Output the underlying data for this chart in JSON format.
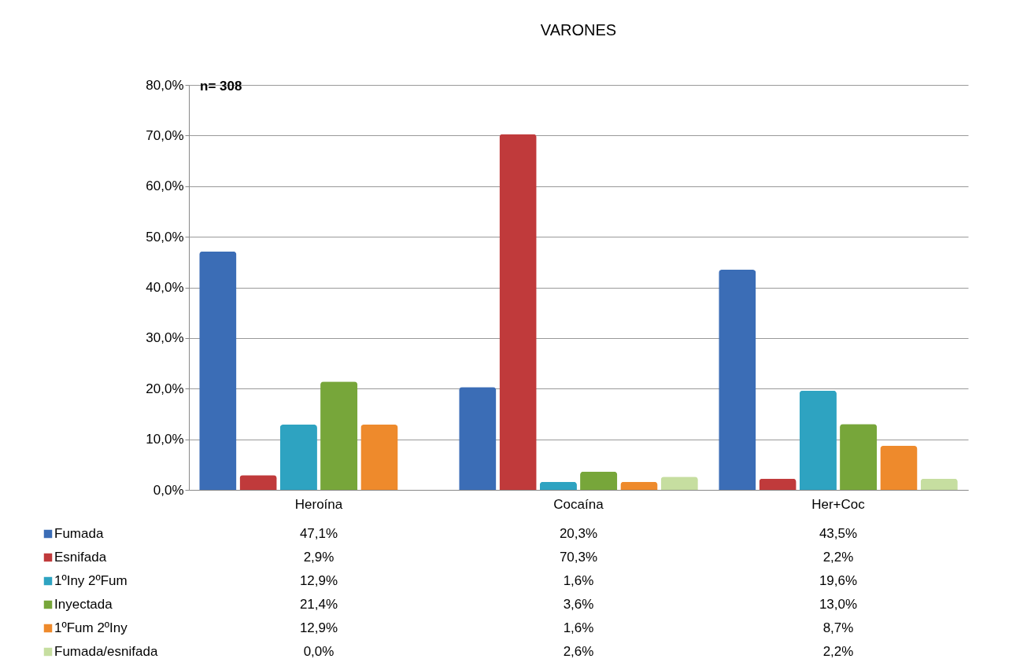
{
  "chart_data": {
    "type": "bar",
    "title": "VARONES",
    "categories": [
      "Heroína",
      "Cocaína",
      "Her+Coc"
    ],
    "series": [
      {
        "name": "Fumada",
        "color": "#3b6db6",
        "values": [
          47.1,
          20.3,
          43.5
        ],
        "value_labels": [
          "47,1%",
          "20,3%",
          "43,5%"
        ]
      },
      {
        "name": "Esnifada",
        "color": "#c03a3b",
        "values": [
          2.9,
          70.3,
          2.2
        ],
        "value_labels": [
          "2,9%",
          "70,3%",
          "2,2%"
        ]
      },
      {
        "name": "1ºIny 2ºFum",
        "color": "#2ea3c1",
        "values": [
          12.9,
          1.6,
          19.6
        ],
        "value_labels": [
          "12,9%",
          "1,6%",
          "19,6%"
        ]
      },
      {
        "name": "Inyectada",
        "color": "#77a63a",
        "values": [
          21.4,
          3.6,
          13.0
        ],
        "value_labels": [
          "21,4%",
          "3,6%",
          "13,0%"
        ]
      },
      {
        "name": "1ºFum 2ºIny",
        "color": "#ee8a2c",
        "values": [
          12.9,
          1.6,
          8.7
        ],
        "value_labels": [
          "12,9%",
          "1,6%",
          "8,7%"
        ]
      },
      {
        "name": "Fumada/esnifada",
        "color": "#c6dea0",
        "values": [
          0.0,
          2.6,
          2.2
        ],
        "value_labels": [
          "0,0%",
          "2,6%",
          "2,2%"
        ]
      }
    ],
    "ylim": [
      0,
      80
    ],
    "yticks": [
      {
        "value": 0,
        "label": "0,0%"
      },
      {
        "value": 10,
        "label": "10,0%"
      },
      {
        "value": 20,
        "label": "20,0%"
      },
      {
        "value": 30,
        "label": "30,0%"
      },
      {
        "value": 40,
        "label": "40,0%"
      },
      {
        "value": 50,
        "label": "50,0%"
      },
      {
        "value": 60,
        "label": "60,0%"
      },
      {
        "value": 70,
        "label": "70,0%"
      },
      {
        "value": 80,
        "label": "80,0%"
      }
    ],
    "grid": "y",
    "legend": "bottom left",
    "annotations": [
      "n= 308"
    ]
  }
}
